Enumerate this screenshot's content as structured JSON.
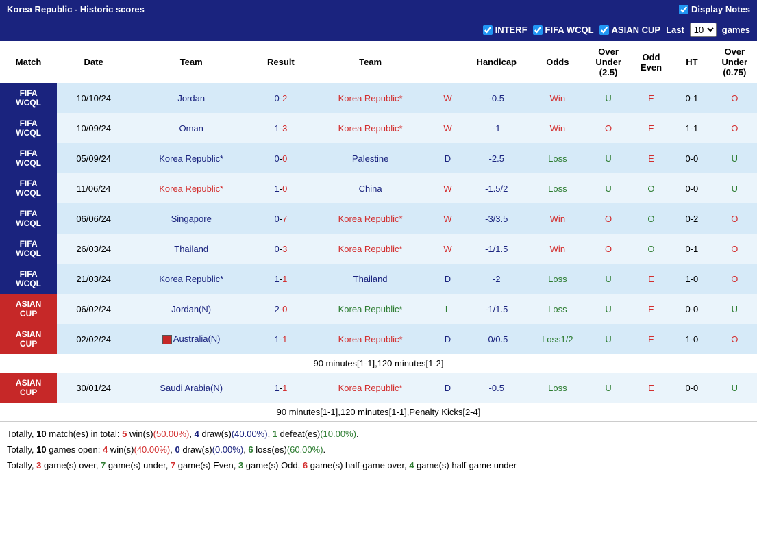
{
  "header": {
    "title": "Korea Republic - Historic scores",
    "displayNotesLabel": "Display Notes",
    "displayNotesChecked": true
  },
  "filters": {
    "interf": {
      "label": "INTERF",
      "checked": true
    },
    "fifaWcql": {
      "label": "FIFA WCQL",
      "checked": true
    },
    "asianCup": {
      "label": "ASIAN CUP",
      "checked": true
    },
    "lastLabel": "Last",
    "gamesLabel": "games",
    "selectedCount": "10"
  },
  "columns": {
    "match": "Match",
    "date": "Date",
    "team1": "Team",
    "result": "Result",
    "team2": "Team",
    "wdl": "",
    "handicap": "Handicap",
    "odds": "Odds",
    "overUnder25": "Over\nUnder\n(2.5)",
    "oddEven": "Odd\nEven",
    "ht": "HT",
    "overUnder075": "Over\nUnder\n(0.75)"
  },
  "rows": [
    {
      "matchType": "FIFA WCQL",
      "matchClass": "match-cell",
      "rowBg": "row-blue-light",
      "date": "10/10/24",
      "team1": "Jordan",
      "team1Color": "blue",
      "score1": "0",
      "score2": "2",
      "team2": "Korea Republic*",
      "team2Color": "red",
      "wdl": "W",
      "wdlColor": "red",
      "handicap": "-0.5",
      "odds": "Win",
      "oddsColor": "red",
      "ou25": "U",
      "ou25Color": "green",
      "oe": "E",
      "oeColor": "red",
      "ht": "0-1",
      "ou075": "O",
      "ou075Color": "red",
      "flag": false
    },
    {
      "matchType": "FIFA WCQL",
      "matchClass": "match-cell",
      "rowBg": "row-blue-lighter",
      "date": "10/09/24",
      "team1": "Oman",
      "team1Color": "blue",
      "score1": "1",
      "score2": "3",
      "team2": "Korea Republic*",
      "team2Color": "red",
      "wdl": "W",
      "wdlColor": "red",
      "handicap": "-1",
      "odds": "Win",
      "oddsColor": "red",
      "ou25": "O",
      "ou25Color": "red",
      "oe": "E",
      "oeColor": "red",
      "ht": "1-1",
      "ou075": "O",
      "ou075Color": "red",
      "flag": false
    },
    {
      "matchType": "FIFA WCQL",
      "matchClass": "match-cell",
      "rowBg": "row-blue-light",
      "date": "05/09/24",
      "team1": "Korea Republic*",
      "team1Color": "blue",
      "score1": "0",
      "score2": "0",
      "team2": "Palestine",
      "team2Color": "blue",
      "wdl": "D",
      "wdlColor": "blue",
      "handicap": "-2.5",
      "odds": "Loss",
      "oddsColor": "green",
      "ou25": "U",
      "ou25Color": "green",
      "oe": "E",
      "oeColor": "red",
      "ht": "0-0",
      "ou075": "U",
      "ou075Color": "green",
      "flag": false
    },
    {
      "matchType": "FIFA WCQL",
      "matchClass": "match-cell",
      "rowBg": "row-blue-lighter",
      "date": "11/06/24",
      "team1": "Korea Republic*",
      "team1Color": "red",
      "score1": "1",
      "score2": "0",
      "team2": "China",
      "team2Color": "blue",
      "wdl": "W",
      "wdlColor": "red",
      "handicap": "-1.5/2",
      "odds": "Loss",
      "oddsColor": "green",
      "ou25": "U",
      "ou25Color": "green",
      "oe": "O",
      "oeColor": "green",
      "ht": "0-0",
      "ou075": "U",
      "ou075Color": "green",
      "flag": false
    },
    {
      "matchType": "FIFA WCQL",
      "matchClass": "match-cell",
      "rowBg": "row-blue-light",
      "date": "06/06/24",
      "team1": "Singapore",
      "team1Color": "blue",
      "score1": "0",
      "score2": "7",
      "team2": "Korea Republic*",
      "team2Color": "red",
      "wdl": "W",
      "wdlColor": "red",
      "handicap": "-3/3.5",
      "odds": "Win",
      "oddsColor": "red",
      "ou25": "O",
      "ou25Color": "red",
      "oe": "O",
      "oeColor": "green",
      "ht": "0-2",
      "ou075": "O",
      "ou075Color": "red",
      "flag": false
    },
    {
      "matchType": "FIFA WCQL",
      "matchClass": "match-cell",
      "rowBg": "row-blue-lighter",
      "date": "26/03/24",
      "team1": "Thailand",
      "team1Color": "blue",
      "score1": "0",
      "score2": "3",
      "team2": "Korea Republic*",
      "team2Color": "red",
      "wdl": "W",
      "wdlColor": "red",
      "handicap": "-1/1.5",
      "odds": "Win",
      "oddsColor": "red",
      "ou25": "O",
      "ou25Color": "red",
      "oe": "O",
      "oeColor": "green",
      "ht": "0-1",
      "ou075": "O",
      "ou075Color": "red",
      "flag": false
    },
    {
      "matchType": "FIFA WCQL",
      "matchClass": "match-cell",
      "rowBg": "row-blue-light",
      "date": "21/03/24",
      "team1": "Korea Republic*",
      "team1Color": "blue",
      "score1": "1",
      "score2": "1",
      "team2": "Thailand",
      "team2Color": "blue",
      "wdl": "D",
      "wdlColor": "blue",
      "handicap": "-2",
      "odds": "Loss",
      "oddsColor": "green",
      "ou25": "U",
      "ou25Color": "green",
      "oe": "E",
      "oeColor": "red",
      "ht": "1-0",
      "ou075": "O",
      "ou075Color": "red",
      "flag": false
    },
    {
      "matchType": "ASIAN CUP",
      "matchClass": "match-cell-red",
      "rowBg": "row-blue-lighter",
      "date": "06/02/24",
      "team1": "Jordan(N)",
      "team1Color": "blue",
      "score1": "2",
      "score2": "0",
      "team2": "Korea Republic*",
      "team2Color": "green",
      "wdl": "L",
      "wdlColor": "green",
      "handicap": "-1/1.5",
      "odds": "Loss",
      "oddsColor": "green",
      "ou25": "U",
      "ou25Color": "green",
      "oe": "E",
      "oeColor": "red",
      "ht": "0-0",
      "ou075": "U",
      "ou075Color": "green",
      "flag": false
    },
    {
      "matchType": "ASIAN CUP",
      "matchClass": "match-cell-red",
      "rowBg": "row-blue-light",
      "date": "02/02/24",
      "team1": "Australia(N)",
      "team1Color": "blue",
      "score1": "1",
      "score2": "1",
      "team2": "Korea Republic*",
      "team2Color": "red",
      "wdl": "D",
      "wdlColor": "blue",
      "handicap": "-0/0.5",
      "odds": "Loss1/2",
      "oddsColor": "green",
      "ou25": "U",
      "ou25Color": "green",
      "oe": "E",
      "oeColor": "red",
      "ht": "1-0",
      "ou075": "O",
      "ou075Color": "red",
      "flag": true,
      "note": "90 minutes[1-1],120 minutes[1-2]"
    },
    {
      "matchType": "ASIAN CUP",
      "matchClass": "match-cell-red",
      "rowBg": "row-blue-lighter",
      "date": "30/01/24",
      "team1": "Saudi Arabia(N)",
      "team1Color": "blue",
      "score1": "1",
      "score2": "1",
      "team2": "Korea Republic*",
      "team2Color": "red",
      "wdl": "D",
      "wdlColor": "blue",
      "handicap": "-0.5",
      "odds": "Loss",
      "oddsColor": "green",
      "ou25": "U",
      "ou25Color": "green",
      "oe": "E",
      "oeColor": "red",
      "ht": "0-0",
      "ou075": "U",
      "ou075Color": "green",
      "flag": false,
      "note": "90 minutes[1-1],120 minutes[1-1],Penalty Kicks[2-4]"
    }
  ],
  "summary": {
    "line1": {
      "prefix": "Totally, ",
      "total": "10",
      "totalSuffix": " match(es) in total: ",
      "wins": "5",
      "winsText": " win(s)",
      "winsPct": "(50.00%)",
      "draws": "4",
      "drawsText": " draw(s)",
      "drawsPct": "(40.00%)",
      "defeats": "1",
      "defeatsText": " defeat(es)",
      "defeatsPct": "(10.00%)",
      "end": "."
    },
    "line2": {
      "prefix": "Totally, ",
      "total": "10",
      "totalSuffix": " games open: ",
      "wins": "4",
      "winsText": " win(s)",
      "winsPct": "(40.00%)",
      "draws": "0",
      "drawsText": " draw(s)",
      "drawsPct": "(0.00%)",
      "losses": "6",
      "lossesText": " loss(es)",
      "lossesPct": "(60.00%)",
      "end": "."
    },
    "line3": {
      "prefix": "Totally, ",
      "over": "3",
      "overText": " game(s) over, ",
      "under": "7",
      "underText": " game(s) under, ",
      "even": "7",
      "evenText": " game(s) Even, ",
      "odd": "3",
      "oddText": " game(s) Odd, ",
      "hgOver": "6",
      "hgOverText": " game(s) half-game over, ",
      "hgUnder": "4",
      "hgUnderText": " game(s) half-game under"
    }
  }
}
